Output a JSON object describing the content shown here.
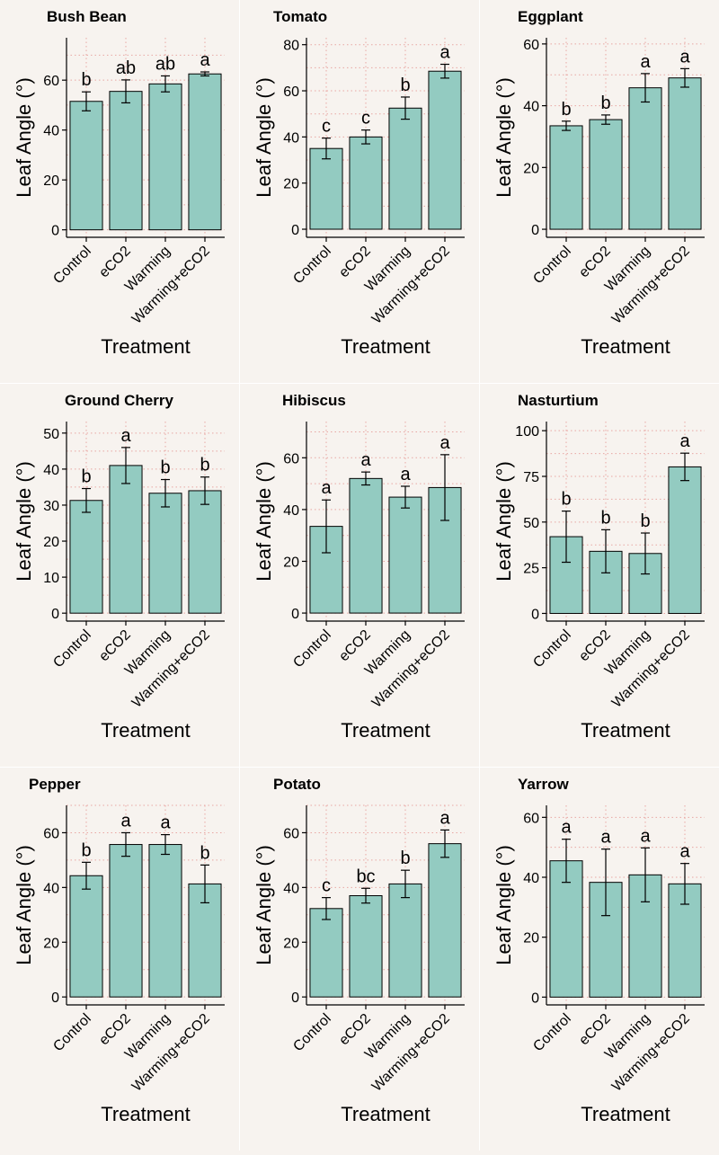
{
  "colors": {
    "background": "#f7f3ef",
    "bar_fill": "#93cbc1",
    "bar_stroke": "#000000",
    "grid": "#e8a7a3",
    "axis": "#000000"
  },
  "chart_data": [
    {
      "type": "bar",
      "title": "Bush Bean",
      "categories": [
        "Control",
        "eCO2",
        "Warming",
        "Warming+eCO2"
      ],
      "values": [
        51.5,
        55.5,
        58.5,
        62.5
      ],
      "errors": [
        3.8,
        4.6,
        3.2,
        0.8
      ],
      "letters": [
        "b",
        "ab",
        "ab",
        "a"
      ],
      "xlabel": "Treatment",
      "ylabel": "Leaf Angle (°)",
      "ylim": [
        -3,
        77
      ],
      "yticks": [
        0,
        20,
        40,
        60
      ],
      "grid": true
    },
    {
      "type": "bar",
      "title": "Tomato",
      "categories": [
        "Control",
        "eCO2",
        "Warming",
        "Warming+eCO2"
      ],
      "values": [
        35.0,
        40.0,
        52.5,
        68.5
      ],
      "errors": [
        4.5,
        3.0,
        4.8,
        3.0
      ],
      "letters": [
        "c",
        "c",
        "b",
        "a"
      ],
      "xlabel": "Treatment",
      "ylabel": "Leaf Angle (°)",
      "ylim": [
        -3.5,
        83
      ],
      "yticks": [
        0,
        20,
        40,
        60,
        80
      ],
      "grid": true
    },
    {
      "type": "bar",
      "title": "Eggplant",
      "categories": [
        "Control",
        "eCO2",
        "Warming",
        "Warming+eCO2"
      ],
      "values": [
        33.5,
        35.5,
        45.8,
        49.0
      ],
      "errors": [
        1.5,
        1.5,
        4.6,
        3.0
      ],
      "letters": [
        "b",
        "b",
        "a",
        "a"
      ],
      "xlabel": "Treatment",
      "ylabel": "Leaf Angle (°)",
      "ylim": [
        -2.6,
        62
      ],
      "yticks": [
        0,
        20,
        40,
        60
      ],
      "grid": true
    },
    {
      "type": "bar",
      "title": "Ground Cherry",
      "categories": [
        "Control",
        "eCO2",
        "Warming",
        "Warming+eCO2"
      ],
      "values": [
        31.3,
        41.0,
        33.3,
        34.0
      ],
      "errors": [
        3.3,
        5.0,
        3.8,
        3.8
      ],
      "letters": [
        "b",
        "a",
        "b",
        "b"
      ],
      "xlabel": "Treatment",
      "ylabel": "Leaf Angle (°)",
      "ylim": [
        -2.2,
        53.2
      ],
      "yticks": [
        0,
        10,
        20,
        30,
        40,
        50
      ],
      "grid": true
    },
    {
      "type": "bar",
      "title": "Hibiscus",
      "categories": [
        "Control",
        "eCO2",
        "Warming",
        "Warming+eCO2"
      ],
      "values": [
        33.5,
        52.0,
        44.8,
        48.5
      ],
      "errors": [
        10.2,
        2.5,
        4.2,
        12.7
      ],
      "letters": [
        "a",
        "a",
        "a",
        "a"
      ],
      "xlabel": "Treatment",
      "ylabel": "Leaf Angle (°)",
      "ylim": [
        -3.1,
        74
      ],
      "yticks": [
        0,
        20,
        40,
        60
      ],
      "grid": true
    },
    {
      "type": "bar",
      "title": "Nasturtium",
      "categories": [
        "Control",
        "eCO2",
        "Warming",
        "Warming+eCO2"
      ],
      "values": [
        42.0,
        34.0,
        32.8,
        80.2
      ],
      "errors": [
        14.0,
        11.8,
        11.2,
        7.5
      ],
      "letters": [
        "b",
        "b",
        "b",
        "a"
      ],
      "xlabel": "Treatment",
      "ylabel": "Leaf Angle (°)",
      "ylim": [
        -4.2,
        105
      ],
      "yticks": [
        0,
        25,
        50,
        75,
        100
      ],
      "grid": true
    },
    {
      "type": "bar",
      "title": "Pepper",
      "categories": [
        "Control",
        "eCO2",
        "Warming",
        "Warming+eCO2"
      ],
      "values": [
        44.3,
        55.7,
        55.7,
        41.3
      ],
      "errors": [
        4.9,
        4.3,
        3.6,
        6.9
      ],
      "letters": [
        "b",
        "a",
        "a",
        "b"
      ],
      "xlabel": "Treatment",
      "ylabel": "Leaf Angle (°)",
      "ylim": [
        -2.9,
        70
      ],
      "yticks": [
        0,
        20,
        40,
        60
      ],
      "grid": true
    },
    {
      "type": "bar",
      "title": "Potato",
      "categories": [
        "Control",
        "eCO2",
        "Warming",
        "Warming+eCO2"
      ],
      "values": [
        32.3,
        37.0,
        41.3,
        56.0
      ],
      "errors": [
        4.0,
        2.7,
        5.0,
        5.0
      ],
      "letters": [
        "c",
        "bc",
        "b",
        "a"
      ],
      "xlabel": "Treatment",
      "ylabel": "Leaf Angle (°)",
      "ylim": [
        -2.9,
        70
      ],
      "yticks": [
        0,
        20,
        40,
        60
      ],
      "grid": true
    },
    {
      "type": "bar",
      "title": "Yarrow",
      "categories": [
        "Control",
        "eCO2",
        "Warming",
        "Warming+eCO2"
      ],
      "values": [
        45.5,
        38.3,
        40.8,
        37.8
      ],
      "errors": [
        7.2,
        11.1,
        9.0,
        6.8
      ],
      "letters": [
        "a",
        "a",
        "a",
        "a"
      ],
      "xlabel": "Treatment",
      "ylabel": "Leaf Angle (°)",
      "ylim": [
        -2.6,
        64
      ],
      "yticks": [
        0,
        20,
        40,
        60
      ],
      "grid": true
    }
  ]
}
